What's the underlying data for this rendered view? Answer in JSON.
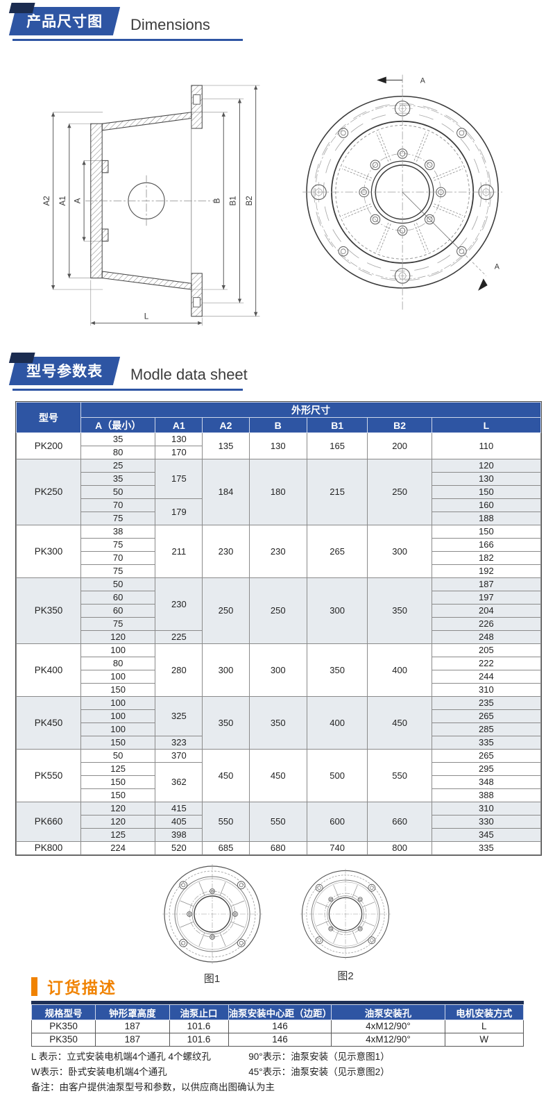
{
  "banners": [
    {
      "zh": "产品尺寸图",
      "en": "Dimensions"
    },
    {
      "zh": "型号参数表",
      "en": "Modle data sheet"
    }
  ],
  "drawings": {
    "side_view": {
      "labels_left": [
        "A2",
        "A1",
        "A"
      ],
      "labels_right": [
        "B",
        "B1",
        "B2"
      ],
      "label_bottom": "L"
    },
    "front_view": {
      "section_label": "A"
    },
    "figures": [
      {
        "caption": "图1"
      },
      {
        "caption": "图2"
      }
    ]
  },
  "spec_table": {
    "header": {
      "model": "型号",
      "group": "外形尺寸",
      "cols": [
        "A（最小）",
        "A1",
        "A2",
        "B",
        "B1",
        "B2",
        "L"
      ]
    },
    "groups": [
      {
        "model": "PK200",
        "shade": false,
        "a": [
          "35",
          "80"
        ],
        "a1": [
          {
            "v": "130",
            "s": 1
          },
          {
            "v": "170",
            "s": 1
          }
        ],
        "a2": "135",
        "b": "130",
        "b1": "165",
        "b2": "200",
        "l_merged": "110"
      },
      {
        "model": "PK250",
        "shade": true,
        "a": [
          "25",
          "35",
          "50",
          "70",
          "75"
        ],
        "a1": [
          {
            "v": "175",
            "s": 3
          },
          {
            "v": "179",
            "s": 2
          }
        ],
        "a2": "184",
        "b": "180",
        "b1": "215",
        "b2": "250",
        "l": [
          "120",
          "130",
          "150",
          "160",
          "188"
        ]
      },
      {
        "model": "PK300",
        "shade": false,
        "a": [
          "38",
          "75",
          "70",
          "75"
        ],
        "a1": [
          {
            "v": "211",
            "s": 4
          }
        ],
        "a2": "230",
        "b": "230",
        "b1": "265",
        "b2": "300",
        "l": [
          "150",
          "166",
          "182",
          "192"
        ]
      },
      {
        "model": "PK350",
        "shade": true,
        "a": [
          "50",
          "60",
          "60",
          "75",
          "120"
        ],
        "a1": [
          {
            "v": "230",
            "s": 4
          },
          {
            "v": "225",
            "s": 1
          }
        ],
        "a2": "250",
        "b": "250",
        "b1": "300",
        "b2": "350",
        "l": [
          "187",
          "197",
          "204",
          "226",
          "248"
        ]
      },
      {
        "model": "PK400",
        "shade": false,
        "a": [
          "100",
          "80",
          "100",
          "150"
        ],
        "a1": [
          {
            "v": "280",
            "s": 4
          }
        ],
        "a2": "300",
        "b": "300",
        "b1": "350",
        "b2": "400",
        "l": [
          "205",
          "222",
          "244",
          "310"
        ]
      },
      {
        "model": "PK450",
        "shade": true,
        "a": [
          "100",
          "100",
          "100",
          "150"
        ],
        "a1": [
          {
            "v": "325",
            "s": 3
          },
          {
            "v": "323",
            "s": 1
          }
        ],
        "a2": "350",
        "b": "350",
        "b1": "400",
        "b2": "450",
        "l": [
          "235",
          "265",
          "285",
          "335"
        ]
      },
      {
        "model": "PK550",
        "shade": false,
        "a": [
          "50",
          "125",
          "150",
          "150"
        ],
        "a1": [
          {
            "v": "370",
            "s": 1
          },
          {
            "v": "362",
            "s": 3
          }
        ],
        "a2": "450",
        "b": "450",
        "b1": "500",
        "b2": "550",
        "l": [
          "265",
          "295",
          "348",
          "388"
        ]
      },
      {
        "model": "PK660",
        "shade": true,
        "a": [
          "120",
          "120",
          "125"
        ],
        "a1": [
          {
            "v": "415",
            "s": 1
          },
          {
            "v": "405",
            "s": 1
          },
          {
            "v": "398",
            "s": 1
          }
        ],
        "a2": "550",
        "b": "550",
        "b1": "600",
        "b2": "660",
        "l": [
          "310",
          "330",
          "345"
        ]
      },
      {
        "model": "PK800",
        "shade": false,
        "a": [
          "224"
        ],
        "a1": [
          {
            "v": "520",
            "s": 1
          }
        ],
        "a2": "685",
        "b": "680",
        "b1": "740",
        "b2": "800",
        "l": [
          "335"
        ]
      }
    ]
  },
  "order": {
    "title": "订货描述",
    "table": {
      "headers": [
        "规格型号",
        "钟形罩高度",
        "油泵止口",
        "油泵安装中心距（边距）",
        "油泵安装孔",
        "电机安装方式"
      ],
      "rows": [
        [
          "PK350",
          "187",
          "101.6",
          "146",
          "4xM12/90°",
          "L"
        ],
        [
          "PK350",
          "187",
          "101.6",
          "146",
          "4xM12/90°",
          "W"
        ]
      ]
    },
    "notes": [
      {
        "left": "L 表示：立式安装电机端4个通孔  4个螺纹孔",
        "right": "90°表示：油泵安装（见示意图1）"
      },
      {
        "left": "W表示：卧式安装电机端4个通孔",
        "right": "45°表示：油泵安装（见示意图2）"
      }
    ],
    "remark": "备注：由客户提供油泵型号和参数，以供应商出图确认为主"
  },
  "colors": {
    "accent_blue": "#2e55a3",
    "accent_navy": "#1b2c50",
    "accent_orange": "#f08200",
    "row_shade": "#e7ebef"
  }
}
